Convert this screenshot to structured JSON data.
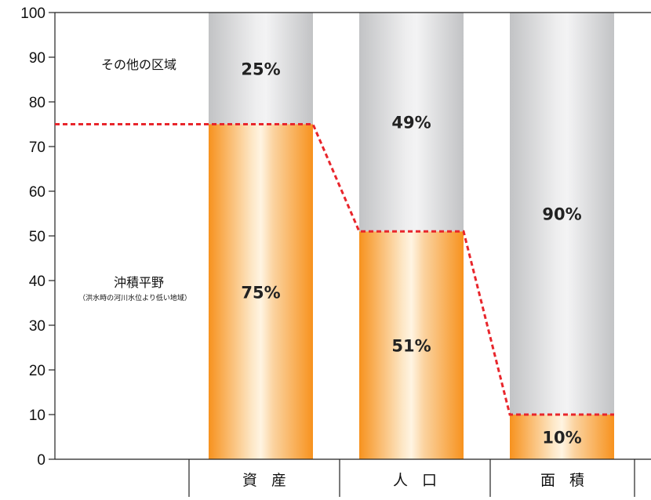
{
  "chart_data": {
    "type": "bar",
    "stacked": true,
    "categories": [
      "資 産",
      "人 口",
      "面 積"
    ],
    "series": [
      {
        "name": "沖積平野",
        "values": [
          75,
          51,
          10
        ],
        "labels": [
          "75%",
          "51%",
          "10%"
        ],
        "color": "#f7921e"
      },
      {
        "name": "その他の区域",
        "values": [
          25,
          49,
          90
        ],
        "labels": [
          "25%",
          "49%",
          "90%"
        ],
        "color": "#c8c9cb"
      }
    ],
    "ylim": [
      0,
      100
    ],
    "yticks": [
      0,
      10,
      20,
      30,
      40,
      50,
      60,
      70,
      80,
      90,
      100
    ],
    "connector": {
      "style": "dashed",
      "color": "#e8262c"
    },
    "annotations": {
      "upper": "その他の区域",
      "lower": "沖積平野",
      "lower_note": "（洪水時の河川水位より低い地域）"
    },
    "grid": false
  }
}
